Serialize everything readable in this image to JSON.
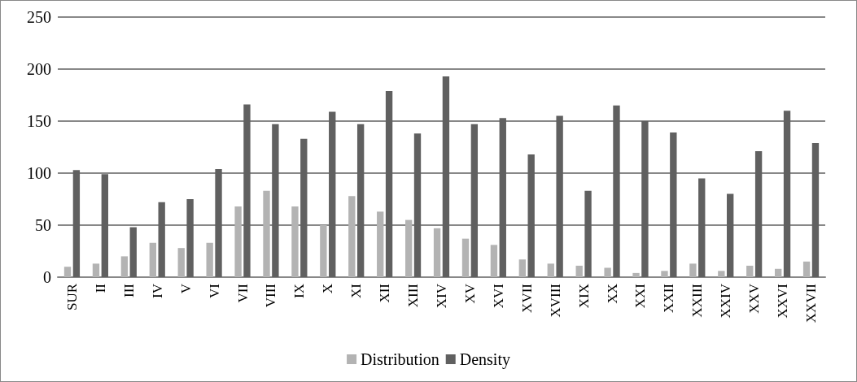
{
  "chart_data": {
    "type": "bar",
    "categories": [
      "SUR",
      "II",
      "III",
      "IV",
      "V",
      "VI",
      "VII",
      "VIII",
      "IX",
      "X",
      "XI",
      "XII",
      "XIII",
      "XIV",
      "XV",
      "XVI",
      "XVII",
      "XVIII",
      "XIX",
      "XX",
      "XXI",
      "XXII",
      "XXIII",
      "XXIV",
      "XXV",
      "XXVI",
      "XXVII"
    ],
    "series": [
      {
        "name": "Distribution",
        "color": "#b3b3b3",
        "values": [
          10,
          13,
          20,
          33,
          28,
          33,
          68,
          83,
          68,
          50,
          78,
          63,
          55,
          47,
          37,
          31,
          17,
          13,
          11,
          9,
          4,
          6,
          13,
          6,
          11,
          8,
          15
        ]
      },
      {
        "name": "Density",
        "color": "#606060",
        "values": [
          103,
          99,
          48,
          72,
          75,
          104,
          166,
          147,
          133,
          159,
          147,
          179,
          138,
          193,
          147,
          153,
          118,
          155,
          83,
          165,
          150,
          139,
          95,
          80,
          121,
          160,
          129
        ]
      }
    ],
    "ylim": [
      0,
      250
    ],
    "yticks": [
      0,
      50,
      100,
      150,
      200,
      250
    ],
    "grid": "y",
    "legend": "bottom"
  }
}
